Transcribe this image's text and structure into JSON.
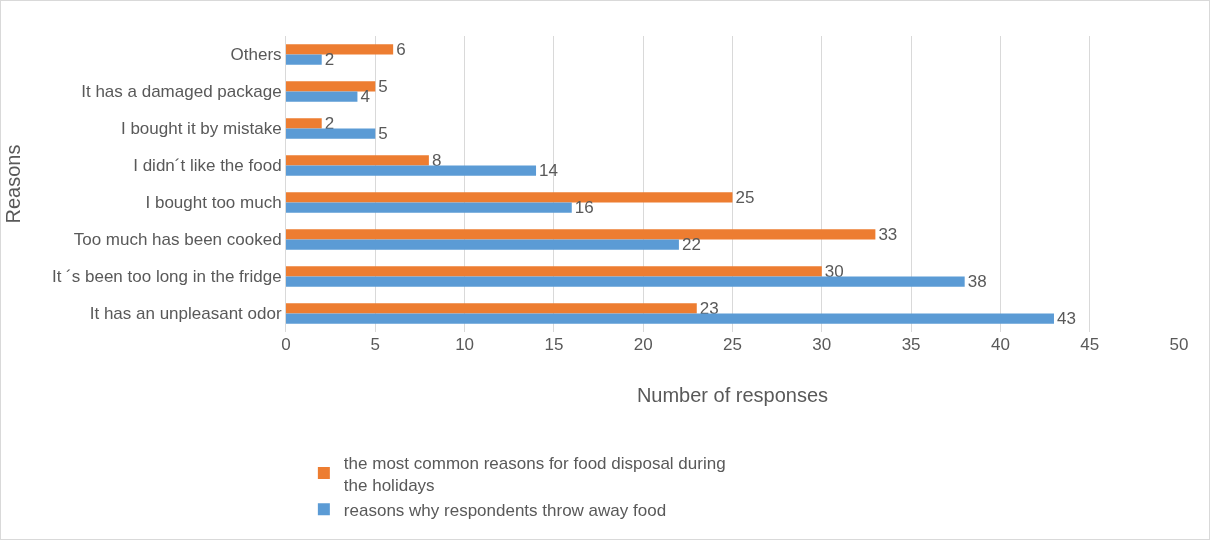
{
  "chart_data": {
    "type": "bar",
    "orientation": "horizontal",
    "xlabel": "Number of responses",
    "ylabel": "Reasons",
    "categories": [
      "Others",
      "It has a damaged package",
      "I bought it by mistake",
      "I didn´t like the food",
      "I bought too much",
      "Too much has been cooked",
      "It ´s been too long in the fridge",
      "It has an unpleasant odor"
    ],
    "series": [
      {
        "name": "the most common reasons for food disposal during the holidays",
        "color": "#ed7d31",
        "values": [
          6,
          5,
          2,
          8,
          25,
          33,
          30,
          23
        ]
      },
      {
        "name": "reasons why respondents throw away food",
        "color": "#5b9bd5",
        "values": [
          2,
          4,
          5,
          14,
          16,
          22,
          38,
          43
        ]
      }
    ],
    "xlim": [
      0,
      50
    ],
    "xticks": [
      0,
      5,
      10,
      15,
      20,
      25,
      30,
      35,
      40,
      45,
      50
    ],
    "grid": "x",
    "legend": "bottom",
    "data_labels": true
  }
}
